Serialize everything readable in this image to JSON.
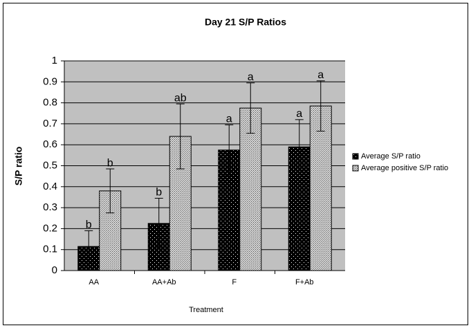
{
  "chart_data": {
    "type": "bar",
    "title": "Day 21 S/P Ratios",
    "x_label": "Treatment",
    "y_label": "S/P ratio",
    "categories": [
      "AA",
      "AA+Ab",
      "F",
      "F+Ab"
    ],
    "series": [
      {
        "name": "Average S/P ratio",
        "color": "#000000",
        "values": [
          0.115,
          0.225,
          0.575,
          0.59
        ],
        "errors": [
          0.075,
          0.12,
          0.12,
          0.13
        ],
        "annotations": [
          "b",
          "b",
          "a",
          "a"
        ]
      },
      {
        "name": "Average positive S/P ratio",
        "color": "#c8c8c8",
        "values": [
          0.38,
          0.64,
          0.775,
          0.785
        ],
        "errors": [
          0.105,
          0.155,
          0.12,
          0.12
        ],
        "annotations": [
          "b",
          "ab",
          "a",
          "a"
        ]
      }
    ],
    "ylim": [
      0,
      1
    ],
    "yticks": [
      0,
      0.1,
      0.2,
      0.3,
      0.4,
      0.5,
      0.6,
      0.7,
      0.8,
      0.9,
      1
    ],
    "grid": true,
    "legend": "right"
  }
}
